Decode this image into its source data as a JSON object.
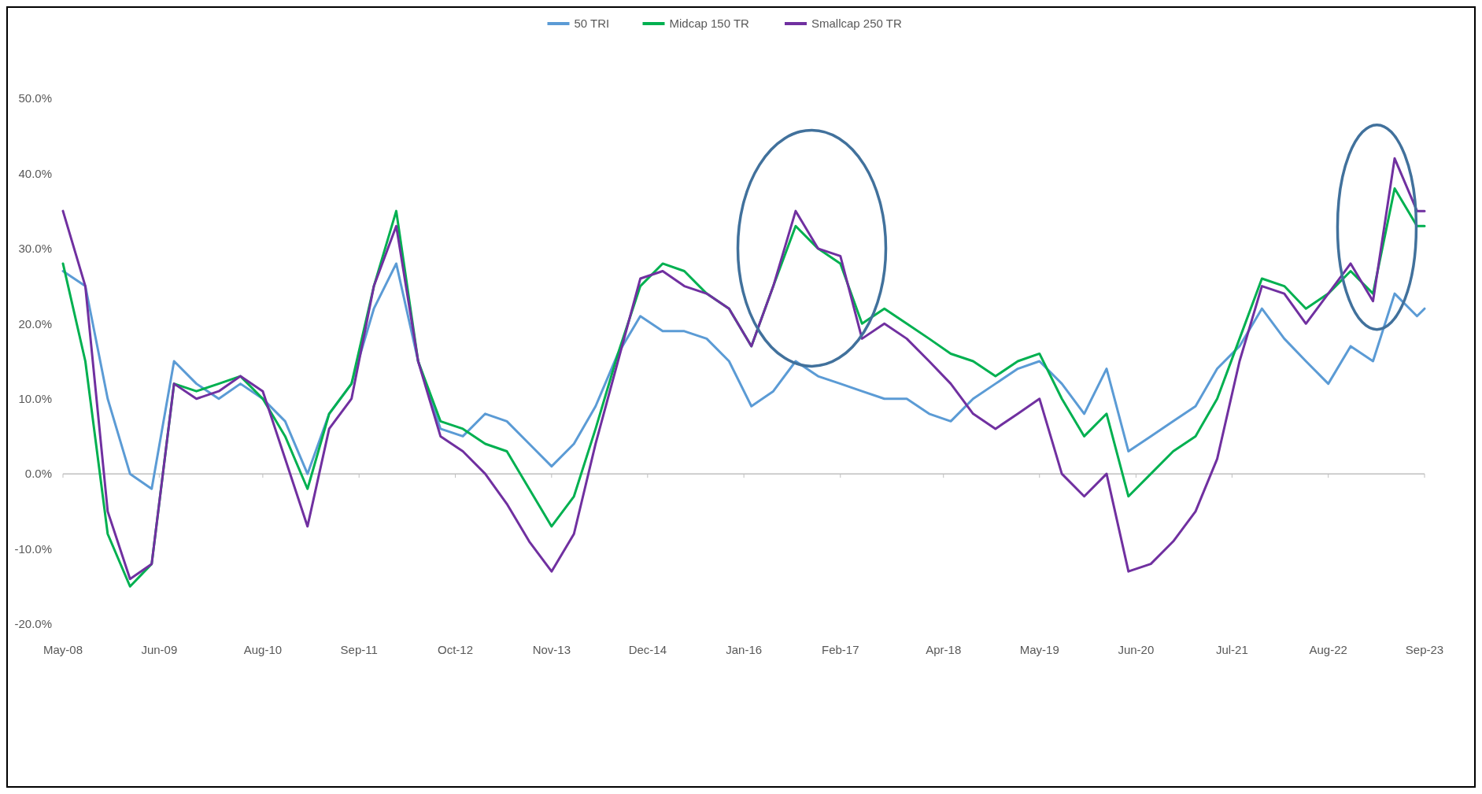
{
  "chart_data": {
    "type": "line",
    "x": [
      "2008-05",
      "2008-08",
      "2008-11",
      "2009-02",
      "2009-05",
      "2009-08",
      "2009-11",
      "2010-02",
      "2010-05",
      "2010-08",
      "2010-11",
      "2011-02",
      "2011-05",
      "2011-08",
      "2011-11",
      "2012-02",
      "2012-05",
      "2012-08",
      "2012-11",
      "2013-02",
      "2013-05",
      "2013-08",
      "2013-11",
      "2014-02",
      "2014-05",
      "2014-08",
      "2014-11",
      "2015-02",
      "2015-05",
      "2015-08",
      "2015-11",
      "2016-02",
      "2016-05",
      "2016-08",
      "2016-11",
      "2017-02",
      "2017-05",
      "2017-08",
      "2017-11",
      "2018-02",
      "2018-05",
      "2018-08",
      "2018-11",
      "2019-02",
      "2019-05",
      "2019-08",
      "2019-11",
      "2020-02",
      "2020-05",
      "2020-08",
      "2020-11",
      "2021-02",
      "2021-05",
      "2021-08",
      "2021-11",
      "2022-02",
      "2022-05",
      "2022-08",
      "2022-11",
      "2023-02",
      "2023-05",
      "2023-08",
      "2023-09"
    ],
    "series": [
      {
        "name": "50 TRI",
        "color": "#5b9bd5",
        "values": [
          27,
          25,
          10,
          0,
          -2,
          15,
          12,
          10,
          12,
          10,
          7,
          0,
          8,
          12,
          22,
          28,
          15,
          6,
          5,
          8,
          7,
          4,
          1,
          4,
          9,
          16,
          21,
          19,
          19,
          18,
          15,
          9,
          11,
          15,
          13,
          12,
          11,
          10,
          10,
          8,
          7,
          10,
          12,
          14,
          15,
          12,
          8,
          14,
          3,
          5,
          7,
          9,
          14,
          17,
          22,
          18,
          15,
          12,
          17,
          15,
          24,
          21,
          22
        ]
      },
      {
        "name": "Midcap 150 TR",
        "color": "#00b050",
        "values": [
          28,
          15,
          -8,
          -15,
          -12,
          12,
          11,
          12,
          13,
          10,
          5,
          -2,
          8,
          12,
          25,
          35,
          15,
          7,
          6,
          4,
          3,
          -2,
          -7,
          -3,
          6,
          16,
          25,
          28,
          27,
          24,
          22,
          17,
          25,
          33,
          30,
          28,
          20,
          22,
          20,
          18,
          16,
          15,
          13,
          15,
          16,
          10,
          5,
          8,
          -3,
          0,
          3,
          5,
          10,
          18,
          26,
          25,
          22,
          24,
          27,
          24,
          38,
          33,
          33
        ]
      },
      {
        "name": "Smallcap 250 TR",
        "color": "#7030a0",
        "values": [
          35,
          25,
          -5,
          -14,
          -12,
          12,
          10,
          11,
          13,
          11,
          2,
          -7,
          6,
          10,
          25,
          33,
          15,
          5,
          3,
          0,
          -4,
          -9,
          -13,
          -8,
          4,
          15,
          26,
          27,
          25,
          24,
          22,
          17,
          25,
          35,
          30,
          29,
          18,
          20,
          18,
          15,
          12,
          8,
          6,
          8,
          10,
          0,
          -3,
          0,
          -13,
          -12,
          -9,
          -5,
          2,
          15,
          25,
          24,
          20,
          24,
          28,
          23,
          42,
          35,
          35
        ]
      }
    ],
    "xlim": [
      "2008-05",
      "2023-09"
    ],
    "xticks": [
      {
        "value": "2008-05",
        "label": "May-08"
      },
      {
        "value": "2009-06",
        "label": "Jun-09"
      },
      {
        "value": "2010-08",
        "label": "Aug-10"
      },
      {
        "value": "2011-09",
        "label": "Sep-11"
      },
      {
        "value": "2012-10",
        "label": "Oct-12"
      },
      {
        "value": "2013-11",
        "label": "Nov-13"
      },
      {
        "value": "2014-12",
        "label": "Dec-14"
      },
      {
        "value": "2016-01",
        "label": "Jan-16"
      },
      {
        "value": "2017-02",
        "label": "Feb-17"
      },
      {
        "value": "2018-04",
        "label": "Apr-18"
      },
      {
        "value": "2019-05",
        "label": "May-19"
      },
      {
        "value": "2020-06",
        "label": "Jun-20"
      },
      {
        "value": "2021-07",
        "label": "Jul-21"
      },
      {
        "value": "2022-08",
        "label": "Aug-22"
      },
      {
        "value": "2023-09",
        "label": "Sep-23"
      }
    ],
    "ylim": [
      -20,
      50
    ],
    "yticks": [
      {
        "value": -20,
        "label": "-20.0%"
      },
      {
        "value": -10,
        "label": "-10.0%"
      },
      {
        "value": 0,
        "label": "0.0%"
      },
      {
        "value": 10,
        "label": "10.0%"
      },
      {
        "value": 20,
        "label": "20.0%"
      },
      {
        "value": 30,
        "label": "30.0%"
      },
      {
        "value": 40,
        "label": "40.0%"
      },
      {
        "value": 50,
        "label": "50.0%"
      }
    ],
    "grid": false,
    "ref_lines": [
      {
        "axis": "y",
        "value": 0,
        "color": "#bfbfbf"
      }
    ],
    "legend": "top",
    "line_style": "solid",
    "marker": "none"
  }
}
